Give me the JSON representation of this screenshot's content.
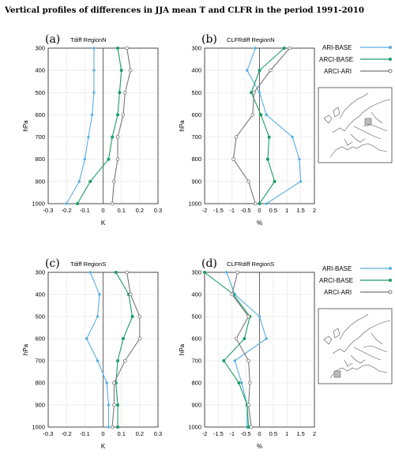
{
  "title": "Vertical profiles of differences in JJA mean T and CLFR in the period 1991-2010",
  "colors": {
    "ari_base": "#5aaee0",
    "arci_base": "#1a9e64",
    "arci_ari": "#777777",
    "zero": "#555555",
    "grid": "#e6e6e6"
  },
  "legend_top": [
    {
      "label": "ARI-BASE",
      "color": "#5aaee0"
    },
    {
      "label": "ARCI-BASE",
      "color": "#1a9e64"
    },
    {
      "label": "ARCI-ARI",
      "color": "#777777"
    }
  ],
  "legend_bottom": [
    {
      "label": "ARI-BASE",
      "color": "#5aaee0"
    },
    {
      "label": "ARCI-BASE",
      "color": "#1a9e64"
    },
    {
      "label": "ARCI-ARI",
      "color": "#777777"
    }
  ],
  "chart_data": [
    {
      "type": "line",
      "panel": "(a)",
      "title": "Tdiff RegionN",
      "xlabel": "K",
      "ylabel": "hPa",
      "xlim": [
        -0.3,
        0.3
      ],
      "ylim": [
        1000,
        300
      ],
      "xticks": [
        "-0.3",
        "-0.2",
        "-0.1",
        "0",
        "0.1",
        "0.2",
        "0.3"
      ],
      "yticks": [
        "300",
        "400",
        "500",
        "600",
        "700",
        "800",
        "900",
        "1000"
      ],
      "levels": [
        300,
        400,
        500,
        600,
        700,
        800,
        900,
        1000
      ],
      "series": [
        {
          "name": "ARI-BASE",
          "values": [
            -0.05,
            -0.05,
            -0.05,
            -0.06,
            -0.08,
            -0.1,
            -0.13,
            -0.2
          ]
        },
        {
          "name": "ARCI-BASE",
          "values": [
            0.08,
            0.1,
            0.09,
            0.08,
            0.05,
            0.03,
            -0.07,
            -0.14
          ]
        },
        {
          "name": "ARCI-ARI",
          "values": [
            0.13,
            0.15,
            0.12,
            0.11,
            0.08,
            0.08,
            0.06,
            0.05
          ]
        }
      ]
    },
    {
      "type": "line",
      "panel": "(b)",
      "title": "CLFRdiff RegionN",
      "xlabel": "%",
      "ylabel": "hPa",
      "xlim": [
        -2,
        2
      ],
      "ylim": [
        1000,
        300
      ],
      "xticks": [
        "-2",
        "-1.5",
        "-1",
        "-0.5",
        "0",
        "0.5",
        "1",
        "1.5",
        "2"
      ],
      "yticks": [
        "300",
        "400",
        "500",
        "600",
        "700",
        "800",
        "900",
        "1000"
      ],
      "levels": [
        300,
        400,
        500,
        600,
        700,
        800,
        900,
        1000
      ],
      "series": [
        {
          "name": "ARI-BASE",
          "values": [
            -0.15,
            -0.45,
            0.0,
            0.25,
            1.2,
            1.45,
            1.5,
            0.25
          ]
        },
        {
          "name": "ARCI-BASE",
          "values": [
            0.9,
            0.0,
            -0.3,
            0.05,
            0.35,
            0.3,
            0.55,
            0.0
          ]
        },
        {
          "name": "ARCI-ARI",
          "values": [
            1.1,
            0.4,
            -0.2,
            -0.25,
            -0.85,
            -0.95,
            -0.4,
            -0.15
          ]
        }
      ]
    },
    {
      "type": "line",
      "panel": "(c)",
      "title": "Tdiff RegionS",
      "xlabel": "K",
      "ylabel": "hPa",
      "xlim": [
        -0.3,
        0.3
      ],
      "ylim": [
        1000,
        300
      ],
      "xticks": [
        "-0.3",
        "-0.2",
        "-0.1",
        "0",
        "0.1",
        "0.2",
        "0.3"
      ],
      "yticks": [
        "300",
        "400",
        "500",
        "600",
        "700",
        "800",
        "900",
        "1000"
      ],
      "levels": [
        300,
        400,
        500,
        600,
        700,
        800,
        900,
        1000
      ],
      "series": [
        {
          "name": "ARI-BASE",
          "values": [
            -0.07,
            -0.02,
            -0.03,
            -0.09,
            -0.03,
            0.02,
            0.03,
            0.03
          ]
        },
        {
          "name": "ARCI-BASE",
          "values": [
            0.07,
            0.14,
            0.16,
            0.11,
            0.08,
            0.07,
            0.08,
            0.08
          ]
        },
        {
          "name": "ARCI-ARI",
          "values": [
            0.13,
            0.15,
            0.2,
            0.2,
            0.12,
            0.06,
            0.06,
            0.05
          ]
        }
      ]
    },
    {
      "type": "line",
      "panel": "(d)",
      "title": "CLFRdiff RegionS",
      "xlabel": "%",
      "ylabel": "hPa",
      "xlim": [
        -2,
        2
      ],
      "ylim": [
        1000,
        300
      ],
      "xticks": [
        "-2",
        "-1.5",
        "-1",
        "-0.5",
        "0",
        "0.5",
        "1",
        "1.5",
        "2"
      ],
      "yticks": [
        "300",
        "400",
        "500",
        "600",
        "700",
        "800",
        "900",
        "1000"
      ],
      "levels": [
        300,
        400,
        500,
        600,
        700,
        800,
        900,
        1000
      ],
      "series": [
        {
          "name": "ARI-BASE",
          "values": [
            -1.2,
            -0.9,
            0.0,
            0.25,
            -0.9,
            -0.65,
            -0.45,
            -0.45
          ]
        },
        {
          "name": "ARCI-BASE",
          "values": [
            -2.0,
            -0.95,
            -0.35,
            -0.55,
            -1.3,
            -0.75,
            -0.45,
            -0.4
          ]
        },
        {
          "name": "ARCI-ARI",
          "values": [
            -0.8,
            -1.0,
            -0.4,
            -0.85,
            -0.4,
            -0.35,
            -0.4,
            -0.3
          ]
        }
      ]
    }
  ]
}
